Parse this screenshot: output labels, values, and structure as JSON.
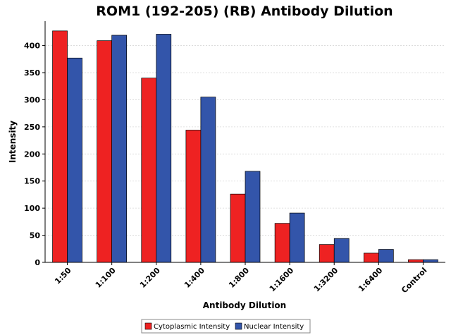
{
  "chart_data": {
    "type": "bar",
    "title": "ROM1 (192-205) (RB) Antibody Dilution",
    "xlabel": "Antibody Dilution",
    "ylabel": "Intensity",
    "categories": [
      "1:50",
      "1:100",
      "1:200",
      "1:400",
      "1:800",
      "1:1600",
      "1:3200",
      "1:6400",
      "Control"
    ],
    "series": [
      {
        "name": "Cytoplasmic Intensity",
        "color": "#ee2222",
        "values": [
          427,
          409,
          340,
          244,
          126,
          72,
          33,
          17,
          5
        ]
      },
      {
        "name": "Nuclear Intensity",
        "color": "#3355aa",
        "values": [
          377,
          419,
          421,
          305,
          168,
          91,
          44,
          24,
          5
        ]
      }
    ],
    "ylim": [
      0,
      445
    ],
    "yticks": [
      0,
      50,
      100,
      150,
      200,
      250,
      300,
      350,
      400
    ],
    "grid": true,
    "legend_position": "bottom-center"
  }
}
